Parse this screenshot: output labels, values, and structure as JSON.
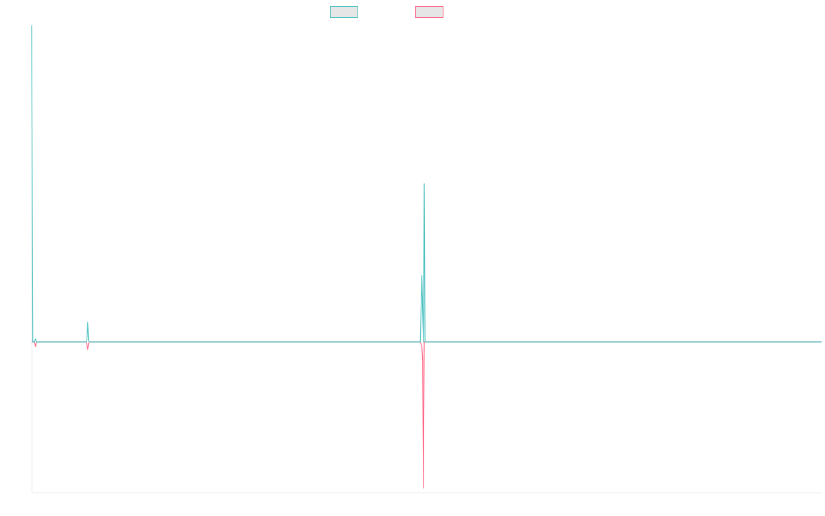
{
  "chart_data": {
    "type": "line",
    "title": "",
    "xlabel": "",
    "ylabel": "",
    "grid": false,
    "legend": "top-center",
    "xlim": [
      0,
      1000
    ],
    "ylim": [
      -1.0,
      2.1
    ],
    "series": [
      {
        "color": "#4bc0c0",
        "fill": "#e6e6e6",
        "x": [
          0,
          1.5,
          2.5,
          3.5,
          5,
          6,
          7,
          8,
          69,
          70,
          71,
          72,
          73,
          74,
          492,
          494,
          495,
          496,
          497,
          498,
          499,
          500,
          501,
          502,
          503,
          504,
          505,
          506,
          507,
          508,
          510,
          1000
        ],
        "y": [
          2.1,
          0.0,
          0.0,
          0.0,
          0.02,
          0.0,
          0.0,
          0.0,
          0.0,
          0.02,
          0.13,
          0.01,
          0.0,
          0.0,
          0.0,
          0.44,
          0.2,
          0.0,
          1.05,
          0.0,
          0.0,
          0.0,
          0.0,
          0.0,
          0.0,
          0.0,
          0.0,
          0.0,
          0.0,
          0.0,
          0.0,
          0.0
        ]
      },
      {
        "color": "#ff6384",
        "fill": "#e6e6e6",
        "x": [
          0,
          1.5,
          2.5,
          3.5,
          5,
          6,
          7,
          8,
          69,
          70,
          71,
          72,
          73,
          74,
          492,
          494,
          495,
          496,
          497,
          498,
          499,
          500,
          501,
          502,
          503,
          504,
          505,
          506,
          507,
          508,
          510,
          1000
        ],
        "y": [
          0.0,
          0.0,
          0.0,
          0.0,
          -0.03,
          0.0,
          0.0,
          0.0,
          0.0,
          -0.02,
          -0.05,
          -0.01,
          0.0,
          0.0,
          0.0,
          -0.03,
          -0.12,
          -0.97,
          0.0,
          0.0,
          0.0,
          0.0,
          0.0,
          0.0,
          0.0,
          0.0,
          0.0,
          0.0,
          0.0,
          0.0,
          0.0,
          0.0
        ]
      }
    ]
  }
}
